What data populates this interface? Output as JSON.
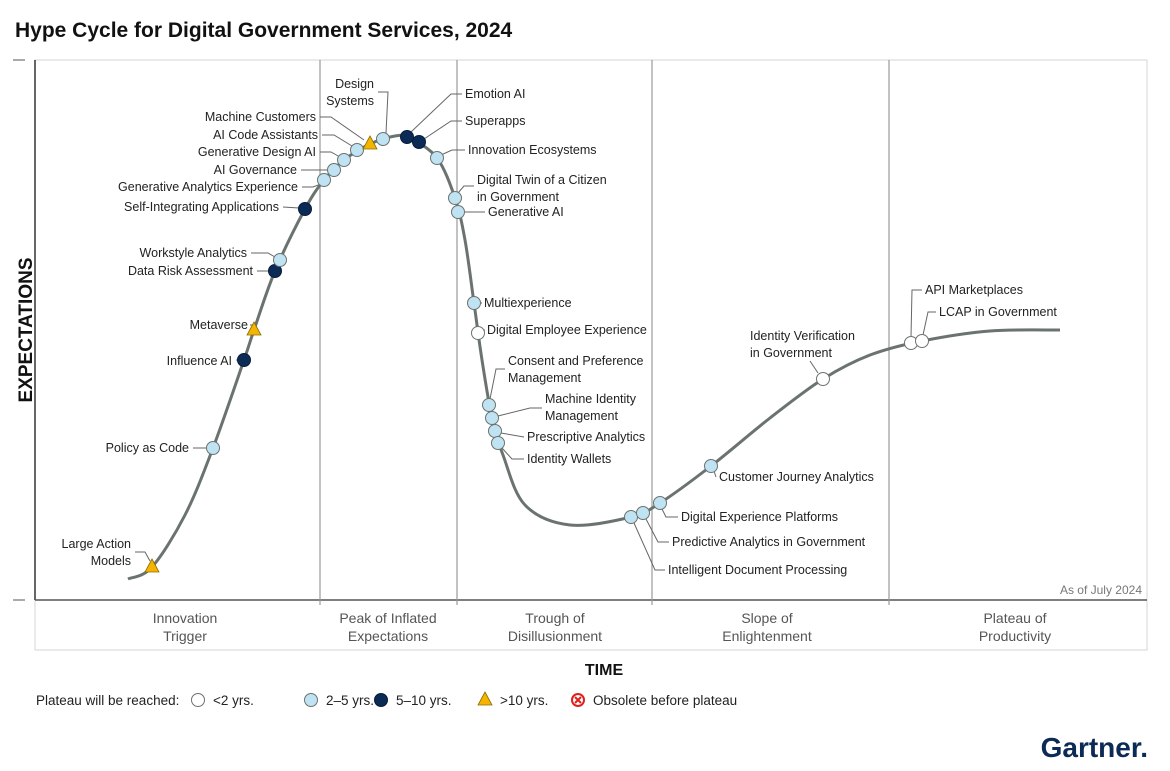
{
  "chart_data": {
    "type": "hype-cycle",
    "title": "Hype Cycle for Digital Government Services, 2024",
    "ylabel": "EXPECTATIONS",
    "xlabel": "TIME",
    "as_of": "As of July 2024",
    "phases": [
      "Innovation Trigger",
      "Peak of Inflated Expectations",
      "Trough of Disillusionment",
      "Slope of Enlightenment",
      "Plateau of Productivity"
    ],
    "phase_lines": [
      [
        "Innovation",
        "Trigger"
      ],
      [
        "Peak of Inflated",
        "Expectations"
      ],
      [
        "Trough of",
        "Disillusionment"
      ],
      [
        "Slope of",
        "Enlightenment"
      ],
      [
        "Plateau of",
        "Productivity"
      ]
    ],
    "legend": {
      "title": "Plateau will be reached:",
      "entries": [
        {
          "key": "lt2",
          "label": "<2 yrs."
        },
        {
          "key": "2to5",
          "label": "2–5 yrs."
        },
        {
          "key": "5to10",
          "label": "5–10 yrs."
        },
        {
          "key": "gt10",
          "label": ">10 yrs."
        },
        {
          "key": "obsolete",
          "label": "Obsolete before plateau"
        }
      ]
    },
    "colors": {
      "lt2": "#ffffff",
      "2to5": "#bfe3f2",
      "5to10": "#0b2a55",
      "gt10": "#f5b400",
      "obsolete": "#e0201b",
      "curve": "#6b7370"
    },
    "items": [
      {
        "name": "Large Action Models",
        "lines": [
          "Large Action",
          "Models"
        ],
        "plateau": "gt10",
        "phase": "Innovation Trigger"
      },
      {
        "name": "Policy as Code",
        "lines": [
          "Policy as Code"
        ],
        "plateau": "2to5",
        "phase": "Innovation Trigger"
      },
      {
        "name": "Influence AI",
        "lines": [
          "Influence AI"
        ],
        "plateau": "5to10",
        "phase": "Innovation Trigger"
      },
      {
        "name": "Metaverse",
        "lines": [
          "Metaverse"
        ],
        "plateau": "gt10",
        "phase": "Innovation Trigger"
      },
      {
        "name": "Data Risk Assessment",
        "lines": [
          "Data Risk Assessment"
        ],
        "plateau": "5to10",
        "phase": "Innovation Trigger"
      },
      {
        "name": "Workstyle Analytics",
        "lines": [
          "Workstyle Analytics"
        ],
        "plateau": "2to5",
        "phase": "Innovation Trigger"
      },
      {
        "name": "Self-Integrating Applications",
        "lines": [
          "Self-Integrating Applications"
        ],
        "plateau": "5to10",
        "phase": "Innovation Trigger"
      },
      {
        "name": "Generative Analytics Experience",
        "lines": [
          "Generative Analytics Experience"
        ],
        "plateau": "2to5",
        "phase": "Innovation Trigger"
      },
      {
        "name": "AI Governance",
        "lines": [
          "AI Governance"
        ],
        "plateau": "2to5",
        "phase": "Innovation Trigger"
      },
      {
        "name": "Generative Design AI",
        "lines": [
          "Generative Design AI"
        ],
        "plateau": "2to5",
        "phase": "Peak of Inflated Expectations"
      },
      {
        "name": "AI Code Assistants",
        "lines": [
          "AI Code Assistants"
        ],
        "plateau": "2to5",
        "phase": "Peak of Inflated Expectations"
      },
      {
        "name": "Machine Customers",
        "lines": [
          "Machine Customers"
        ],
        "plateau": "gt10",
        "phase": "Peak of Inflated Expectations"
      },
      {
        "name": "Design Systems",
        "lines": [
          "Design",
          "Systems"
        ],
        "plateau": "2to5",
        "phase": "Peak of Inflated Expectations"
      },
      {
        "name": "Emotion AI",
        "lines": [
          "Emotion AI"
        ],
        "plateau": "5to10",
        "phase": "Peak of Inflated Expectations"
      },
      {
        "name": "Superapps",
        "lines": [
          "Superapps"
        ],
        "plateau": "5to10",
        "phase": "Peak of Inflated Expectations"
      },
      {
        "name": "Innovation Ecosystems",
        "lines": [
          "Innovation Ecosystems"
        ],
        "plateau": "2to5",
        "phase": "Peak of Inflated Expectations"
      },
      {
        "name": "Digital Twin of a Citizen in Government",
        "lines": [
          "Digital Twin of a Citizen",
          "in Government"
        ],
        "plateau": "2to5",
        "phase": "Trough of Disillusionment"
      },
      {
        "name": "Generative AI",
        "lines": [
          "Generative AI"
        ],
        "plateau": "2to5",
        "phase": "Trough of Disillusionment"
      },
      {
        "name": "Multiexperience",
        "lines": [
          "Multiexperience"
        ],
        "plateau": "2to5",
        "phase": "Trough of Disillusionment"
      },
      {
        "name": "Digital Employee Experience",
        "lines": [
          "Digital Employee Experience"
        ],
        "plateau": "lt2",
        "phase": "Trough of Disillusionment"
      },
      {
        "name": "Consent and Preference Management",
        "lines": [
          "Consent and Preference",
          "Management"
        ],
        "plateau": "2to5",
        "phase": "Trough of Disillusionment"
      },
      {
        "name": "Machine Identity Management",
        "lines": [
          "Machine Identity",
          "Management"
        ],
        "plateau": "2to5",
        "phase": "Trough of Disillusionment"
      },
      {
        "name": "Prescriptive Analytics",
        "lines": [
          "Prescriptive Analytics"
        ],
        "plateau": "2to5",
        "phase": "Trough of Disillusionment"
      },
      {
        "name": "Identity Wallets",
        "lines": [
          "Identity Wallets"
        ],
        "plateau": "2to5",
        "phase": "Trough of Disillusionment"
      },
      {
        "name": "Intelligent Document Processing",
        "lines": [
          "Intelligent Document Processing"
        ],
        "plateau": "2to5",
        "phase": "Trough of Disillusionment"
      },
      {
        "name": "Predictive Analytics in Government",
        "lines": [
          "Predictive Analytics in Government"
        ],
        "plateau": "2to5",
        "phase": "Slope of Enlightenment"
      },
      {
        "name": "Digital Experience Platforms",
        "lines": [
          "Digital Experience Platforms"
        ],
        "plateau": "2to5",
        "phase": "Slope of Enlightenment"
      },
      {
        "name": "Customer Journey Analytics",
        "lines": [
          "Customer Journey Analytics"
        ],
        "plateau": "2to5",
        "phase": "Slope of Enlightenment"
      },
      {
        "name": "Identity Verification in Government",
        "lines": [
          "Identity Verification",
          "in Government"
        ],
        "plateau": "lt2",
        "phase": "Slope of Enlightenment"
      },
      {
        "name": "API Marketplaces",
        "lines": [
          "API Marketplaces"
        ],
        "plateau": "lt2",
        "phase": "Slope of Enlightenment"
      },
      {
        "name": "LCAP in Government",
        "lines": [
          "LCAP in Government"
        ],
        "plateau": "lt2",
        "phase": "Slope of Enlightenment"
      }
    ]
  },
  "brand": "Gartner."
}
